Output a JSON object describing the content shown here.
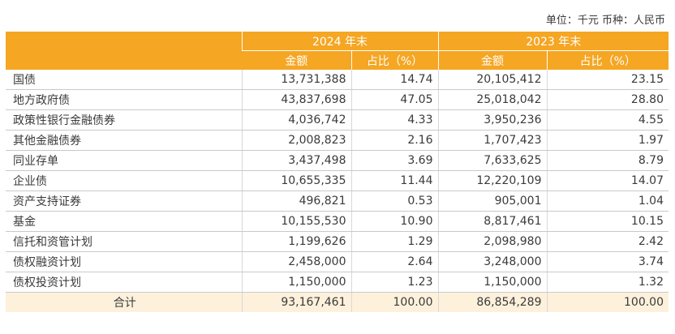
{
  "unit_note": "单位：千元 币种：人民币",
  "header": {
    "year_2024": "2024 年末",
    "year_2023": "2023 年末",
    "amount": "金额",
    "ratio": "占比（%）"
  },
  "rows": [
    {
      "name": "国债",
      "a2024": "13,731,388",
      "p2024": "14.74",
      "a2023": "20,105,412",
      "p2023": "23.15"
    },
    {
      "name": "地方政府债",
      "a2024": "43,837,698",
      "p2024": "47.05",
      "a2023": "25,018,042",
      "p2023": "28.80"
    },
    {
      "name": "政策性银行金融债券",
      "a2024": "4,036,742",
      "p2024": "4.33",
      "a2023": "3,950,236",
      "p2023": "4.55"
    },
    {
      "name": "其他金融债券",
      "a2024": "2,008,823",
      "p2024": "2.16",
      "a2023": "1,707,423",
      "p2023": "1.97"
    },
    {
      "name": "同业存单",
      "a2024": "3,437,498",
      "p2024": "3.69",
      "a2023": "7,633,625",
      "p2023": "8.79"
    },
    {
      "name": "企业债",
      "a2024": "10,655,335",
      "p2024": "11.44",
      "a2023": "12,220,109",
      "p2023": "14.07"
    },
    {
      "name": "资产支持证券",
      "a2024": "496,821",
      "p2024": "0.53",
      "a2023": "905,001",
      "p2023": "1.04"
    },
    {
      "name": "基金",
      "a2024": "10,155,530",
      "p2024": "10.90",
      "a2023": "8,817,461",
      "p2023": "10.15"
    },
    {
      "name": "信托和资管计划",
      "a2024": "1,199,626",
      "p2024": "1.29",
      "a2023": "2,098,980",
      "p2023": "2.42"
    },
    {
      "name": "债权融资计划",
      "a2024": "2,458,000",
      "p2024": "2.64",
      "a2023": "3,248,000",
      "p2023": "3.74"
    },
    {
      "name": "债权投资计划",
      "a2024": "1,150,000",
      "p2024": "1.23",
      "a2023": "1,150,000",
      "p2023": "1.32"
    }
  ],
  "total": {
    "name": "合计",
    "a2024": "93,167,461",
    "p2024": "100.00",
    "a2023": "86,854,289",
    "p2023": "100.00"
  },
  "colors": {
    "header_bg": "#f5a623",
    "total_bg": "#fdf1dc"
  }
}
